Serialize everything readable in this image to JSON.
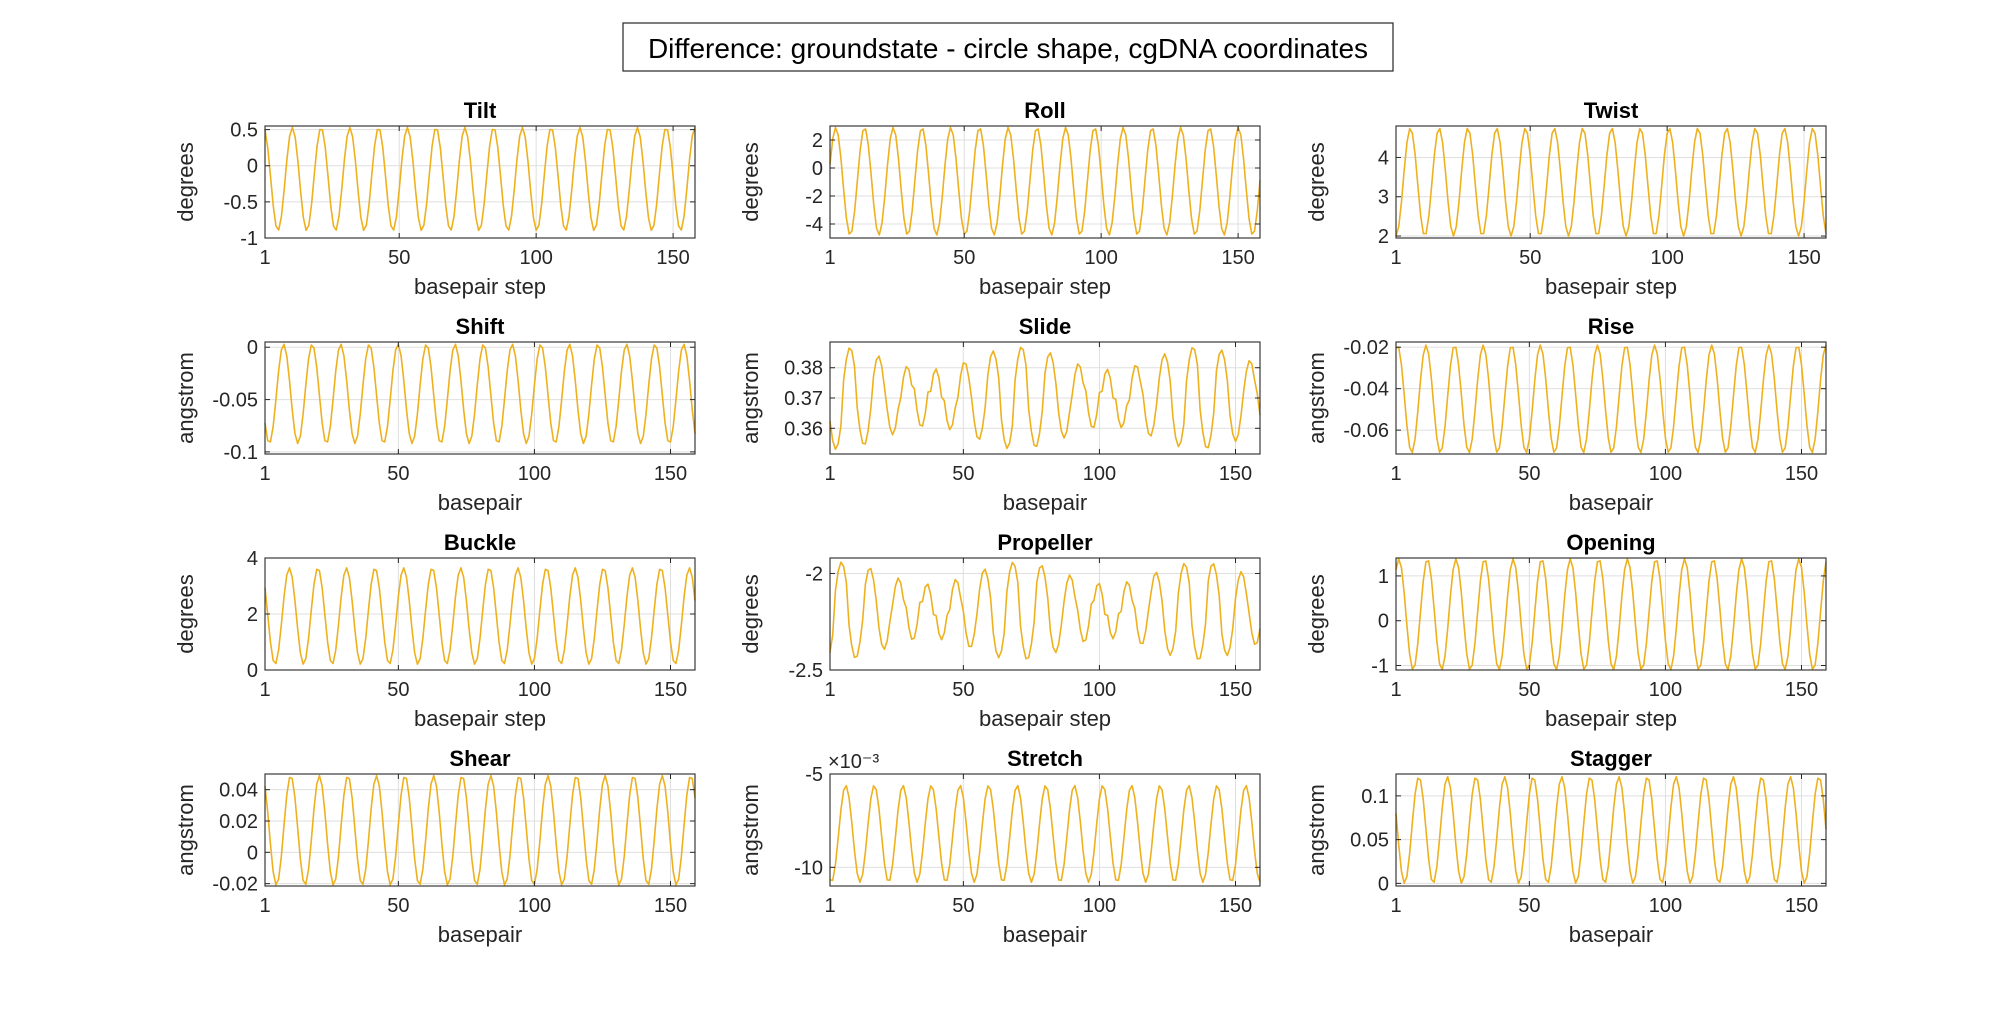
{
  "figure": {
    "title": "Difference: groundstate - circle shape, cgDNA coordinates"
  },
  "colors": {
    "line": "#EDB120",
    "axis": "#262626",
    "grid": "#dfdfdf",
    "frame_bg": "#ffffff"
  },
  "chart_data": [
    {
      "type": "line",
      "title": "Tilt",
      "xlabel": "basepair step",
      "ylabel": "degrees",
      "xlim": [
        1,
        158
      ],
      "ylim": [
        -1,
        0.55
      ],
      "xticks": [
        1,
        50,
        100,
        150
      ],
      "yticks": [
        -1,
        -0.5,
        0,
        0.5
      ],
      "ytick_labels": [
        "-1",
        "-0.5",
        "0",
        "0.5"
      ],
      "grid": true,
      "series": [
        {
          "x_start": 1,
          "x_end": 158,
          "min": -0.9,
          "max": 0.53,
          "period": 10.5,
          "phase": 0.3
        }
      ]
    },
    {
      "type": "line",
      "title": "Roll",
      "xlabel": "basepair step",
      "ylabel": "degrees",
      "xlim": [
        1,
        158
      ],
      "ylim": [
        -5,
        3
      ],
      "xticks": [
        1,
        50,
        100,
        150
      ],
      "yticks": [
        -4,
        -2,
        0,
        2
      ],
      "ytick_labels": [
        "-4",
        "-2",
        "0",
        "2"
      ],
      "grid": true,
      "series": [
        {
          "x_start": 1,
          "x_end": 158,
          "min": -4.8,
          "max": 2.9,
          "period": 10.5,
          "phase": 0.05
        }
      ]
    },
    {
      "type": "line",
      "title": "Twist",
      "xlabel": "basepair step",
      "ylabel": "degrees",
      "xlim": [
        1,
        158
      ],
      "ylim": [
        1.95,
        4.8
      ],
      "xticks": [
        1,
        50,
        100,
        150
      ],
      "yticks": [
        2,
        3,
        4
      ],
      "ytick_labels": [
        "2",
        "3",
        "4"
      ],
      "grid": true,
      "series": [
        {
          "x_start": 1,
          "x_end": 158,
          "min": 2.0,
          "max": 4.75,
          "period": 10.5,
          "phase": 0.75
        }
      ]
    },
    {
      "type": "line",
      "title": "Shift",
      "xlabel": "basepair",
      "ylabel": "angstrom",
      "xlim": [
        1,
        159
      ],
      "ylim": [
        -0.102,
        0.005
      ],
      "xticks": [
        1,
        50,
        100,
        150
      ],
      "yticks": [
        -0.1,
        -0.05,
        0
      ],
      "ytick_labels": [
        "-0.1",
        "-0.05",
        "0"
      ],
      "grid": true,
      "series": [
        {
          "x_start": 1,
          "x_end": 159,
          "min": -0.092,
          "max": 0.003,
          "period": 10.5,
          "phase": 0.6
        }
      ]
    },
    {
      "type": "line",
      "title": "Slide",
      "xlabel": "basepair",
      "ylabel": "angstrom",
      "xlim": [
        1,
        159
      ],
      "ylim": [
        0.3515,
        0.3885
      ],
      "xticks": [
        1,
        50,
        100,
        150
      ],
      "yticks": [
        0.36,
        0.37,
        0.38
      ],
      "ytick_labels": [
        "0.36",
        "0.37",
        "0.38"
      ],
      "grid": true,
      "series": [
        {
          "x_start": 1,
          "x_end": 159,
          "min": 0.353,
          "max": 0.387,
          "period": 10.5,
          "phase": 0.55,
          "irregular": true
        }
      ]
    },
    {
      "type": "line",
      "title": "Rise",
      "xlabel": "basepair",
      "ylabel": "angstrom",
      "xlim": [
        1,
        159
      ],
      "ylim": [
        -0.0715,
        -0.0175
      ],
      "xticks": [
        1,
        50,
        100,
        150
      ],
      "yticks": [
        -0.06,
        -0.04,
        -0.02
      ],
      "ytick_labels": [
        "-0.06",
        "-0.04",
        "-0.02"
      ],
      "grid": true,
      "series": [
        {
          "x_start": 1,
          "x_end": 159,
          "min": -0.071,
          "max": -0.019,
          "period": 10.5,
          "phase": 0.2
        }
      ]
    },
    {
      "type": "line",
      "title": "Buckle",
      "xlabel": "basepair step",
      "ylabel": "degrees",
      "xlim": [
        1,
        159
      ],
      "ylim": [
        0,
        4
      ],
      "xticks": [
        1,
        50,
        100,
        150
      ],
      "yticks": [
        0,
        2,
        4
      ],
      "ytick_labels": [
        "0",
        "2",
        "4"
      ],
      "grid": true,
      "series": [
        {
          "x_start": 1,
          "x_end": 159,
          "min": 0.2,
          "max": 3.65,
          "period": 10.5,
          "phase": 0.4
        }
      ]
    },
    {
      "type": "line",
      "title": "Propeller",
      "xlabel": "basepair step",
      "ylabel": "degrees",
      "xlim": [
        1,
        159
      ],
      "ylim": [
        -2.5,
        -1.92
      ],
      "xticks": [
        1,
        50,
        100,
        150
      ],
      "yticks": [
        -2.5,
        -2
      ],
      "ytick_labels": [
        "-2.5",
        "-2"
      ],
      "grid": true,
      "series": [
        {
          "x_start": 1,
          "x_end": 159,
          "min": -2.45,
          "max": -1.94,
          "period": 10.5,
          "phase": 0.85,
          "irregular": true
        }
      ]
    },
    {
      "type": "line",
      "title": "Opening",
      "xlabel": "basepair step",
      "ylabel": "degrees",
      "xlim": [
        1,
        159
      ],
      "ylim": [
        -1.1,
        1.4
      ],
      "xticks": [
        1,
        50,
        100,
        150
      ],
      "yticks": [
        -1,
        0,
        1
      ],
      "ytick_labels": [
        "-1",
        "0",
        "1"
      ],
      "grid": true,
      "series": [
        {
          "x_start": 1,
          "x_end": 159,
          "min": -1.1,
          "max": 1.38,
          "period": 10.5,
          "phase": 0.15
        }
      ]
    },
    {
      "type": "line",
      "title": "Shear",
      "xlabel": "basepair",
      "ylabel": "angstrom",
      "xlim": [
        1,
        159
      ],
      "ylim": [
        -0.0215,
        0.05
      ],
      "xticks": [
        1,
        50,
        100,
        150
      ],
      "yticks": [
        -0.02,
        0,
        0.02,
        0.04
      ],
      "ytick_labels": [
        "-0.02",
        "0",
        "0.02",
        "0.04"
      ],
      "grid": true,
      "series": [
        {
          "x_start": 1,
          "x_end": 159,
          "min": -0.021,
          "max": 0.049,
          "period": 10.5,
          "phase": 0.35
        }
      ]
    },
    {
      "type": "line",
      "title": "Stretch",
      "xlabel": "basepair",
      "ylabel": "angstrom",
      "exponent_label": "×10⁻³",
      "xlim": [
        1,
        159
      ],
      "ylim": [
        -11,
        -5
      ],
      "xticks": [
        1,
        50,
        100,
        150
      ],
      "yticks": [
        -10,
        -5
      ],
      "ytick_labels": [
        "-10",
        "-5"
      ],
      "grid": true,
      "series": [
        {
          "x_start": 1,
          "x_end": 159,
          "min": -10.8,
          "max": -5.6,
          "period": 10.5,
          "phase": 0.7
        }
      ]
    },
    {
      "type": "line",
      "title": "Stagger",
      "xlabel": "basepair",
      "ylabel": "angstrom",
      "xlim": [
        1,
        159
      ],
      "ylim": [
        -0.003,
        0.125
      ],
      "xticks": [
        1,
        50,
        100,
        150
      ],
      "yticks": [
        0,
        0.05,
        0.1
      ],
      "ytick_labels": [
        "0",
        "0.05",
        "0.1"
      ],
      "grid": true,
      "series": [
        {
          "x_start": 1,
          "x_end": 159,
          "min": 0.0,
          "max": 0.122,
          "period": 10.5,
          "phase": 0.45
        }
      ]
    }
  ]
}
